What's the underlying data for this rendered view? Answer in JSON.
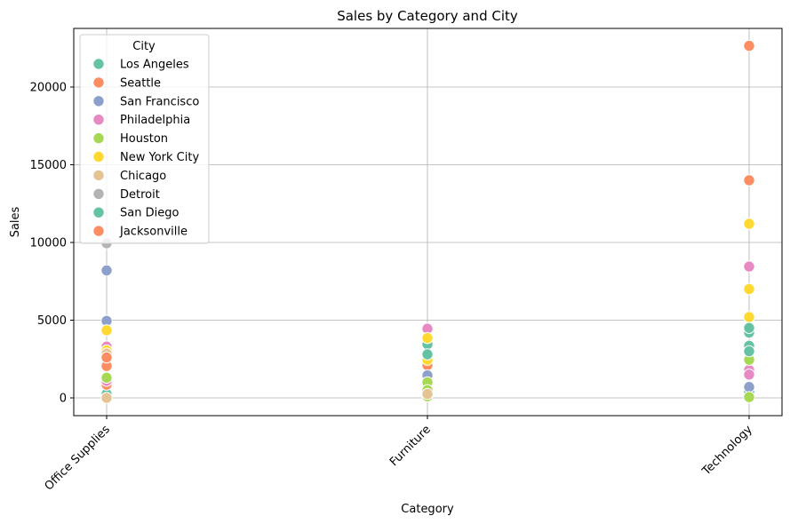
{
  "chart_data": {
    "type": "scatter",
    "title": "Sales by Category and City",
    "xlabel": "Category",
    "ylabel": "Sales",
    "categories": [
      "Office Supplies",
      "Furniture",
      "Technology"
    ],
    "ylim": [
      -1150,
      23700
    ],
    "yticks": [
      0,
      5000,
      10000,
      15000,
      20000
    ],
    "grid": true,
    "legend": {
      "title": "City",
      "position": "top-left"
    },
    "series": [
      {
        "name": "Los Angeles",
        "color": "#66c2a5",
        "points": [
          {
            "x": "Office Supplies",
            "y": 250
          },
          {
            "x": "Furniture",
            "y": 3450
          },
          {
            "x": "Technology",
            "y": 4200
          },
          {
            "x": "Technology",
            "y": 3350
          },
          {
            "x": "Technology",
            "y": 400
          }
        ]
      },
      {
        "name": "Seattle",
        "color": "#fc8d62",
        "points": [
          {
            "x": "Office Supplies",
            "y": 2050
          },
          {
            "x": "Office Supplies",
            "y": 850
          },
          {
            "x": "Furniture",
            "y": 2100
          },
          {
            "x": "Technology",
            "y": 22650
          },
          {
            "x": "Technology",
            "y": 14000
          }
        ]
      },
      {
        "name": "San Francisco",
        "color": "#8da0cb",
        "points": [
          {
            "x": "Office Supplies",
            "y": 8200
          },
          {
            "x": "Office Supplies",
            "y": 4950
          },
          {
            "x": "Furniture",
            "y": 1450
          },
          {
            "x": "Technology",
            "y": 700
          }
        ]
      },
      {
        "name": "Philadelphia",
        "color": "#e78ac3",
        "points": [
          {
            "x": "Office Supplies",
            "y": 3300
          },
          {
            "x": "Office Supplies",
            "y": 1100
          },
          {
            "x": "Furniture",
            "y": 4450
          },
          {
            "x": "Technology",
            "y": 8450
          },
          {
            "x": "Technology",
            "y": 1800
          },
          {
            "x": "Technology",
            "y": 1500
          }
        ]
      },
      {
        "name": "Houston",
        "color": "#a6d854",
        "points": [
          {
            "x": "Office Supplies",
            "y": 1300
          },
          {
            "x": "Furniture",
            "y": 1000
          },
          {
            "x": "Furniture",
            "y": 500
          },
          {
            "x": "Furniture",
            "y": 100
          },
          {
            "x": "Technology",
            "y": 2450
          },
          {
            "x": "Technology",
            "y": 50
          }
        ]
      },
      {
        "name": "New York City",
        "color": "#ffd92f",
        "points": [
          {
            "x": "Office Supplies",
            "y": 4350
          },
          {
            "x": "Office Supplies",
            "y": 3050
          },
          {
            "x": "Furniture",
            "y": 3850
          },
          {
            "x": "Furniture",
            "y": 2450
          },
          {
            "x": "Technology",
            "y": 11200
          },
          {
            "x": "Technology",
            "y": 7000
          },
          {
            "x": "Technology",
            "y": 5200
          }
        ]
      },
      {
        "name": "Chicago",
        "color": "#e5c494",
        "points": [
          {
            "x": "Office Supplies",
            "y": 2850
          },
          {
            "x": "Office Supplies",
            "y": 0
          },
          {
            "x": "Furniture",
            "y": 250
          }
        ]
      },
      {
        "name": "Detroit",
        "color": "#b3b3b3",
        "points": [
          {
            "x": "Office Supplies",
            "y": 9950
          }
        ]
      },
      {
        "name": "San Diego",
        "color": "#66c2a5",
        "points": [
          {
            "x": "Furniture",
            "y": 2800
          },
          {
            "x": "Technology",
            "y": 4500
          },
          {
            "x": "Technology",
            "y": 3000
          }
        ]
      },
      {
        "name": "Jacksonville",
        "color": "#fc8d62",
        "points": [
          {
            "x": "Office Supplies",
            "y": 2600
          }
        ]
      }
    ]
  }
}
